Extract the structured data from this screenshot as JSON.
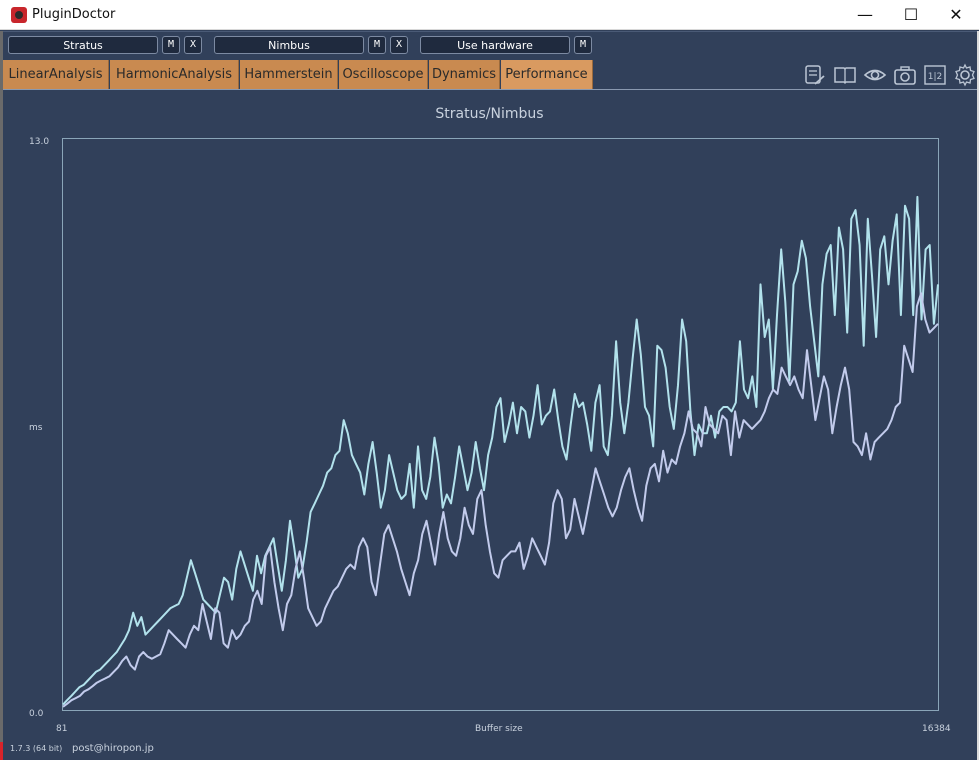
{
  "window": {
    "title": "PluginDoctor",
    "minimize": "—",
    "maximize": "☐",
    "close": "✕"
  },
  "toolbar": {
    "plugin_a": "Stratus",
    "plugin_b": "Nimbus",
    "hardware": "Use hardware",
    "m_label": "M",
    "x_label": "X"
  },
  "tabs": [
    "LinearAnalysis",
    "HarmonicAnalysis",
    "Hammerstein",
    "Oscilloscope",
    "Dynamics",
    "Performance"
  ],
  "active_tab": "Performance",
  "tools": [
    "notes-icon",
    "book-icon",
    "eye-icon",
    "camera-icon",
    "compare-icon",
    "settings-icon"
  ],
  "tool_compare_text": "1|2",
  "footer": {
    "version": "1.7.3 (64 bit)",
    "email": "post@hiropon.jp"
  },
  "chart_data": {
    "type": "line",
    "title": "Stratus/Nimbus",
    "xlabel": "Buffer size",
    "ylabel": "ms",
    "ylim": [
      0.0,
      13.0
    ],
    "y_tick_labels": [
      "13.0",
      "0.0"
    ],
    "x_tick_labels": [
      "81",
      "16384"
    ],
    "xlim": [
      81,
      16384
    ],
    "grid": false,
    "colors": {
      "background": "#31405a",
      "series_a": "#b2e2ec",
      "series_b": "#c2cbec",
      "frame": "#8aa5b8"
    },
    "series": [
      {
        "values": [
          0.1,
          0.2,
          0.3,
          0.4,
          0.5,
          0.55,
          0.65,
          0.75,
          0.85,
          0.9,
          1.0,
          1.1,
          1.2,
          1.3,
          1.45,
          1.6,
          1.8,
          2.2,
          1.9,
          2.1,
          1.7,
          1.8,
          1.9,
          2.0,
          2.1,
          2.2,
          2.3,
          2.35,
          2.4,
          2.6,
          3.0,
          3.4,
          3.1,
          2.8,
          2.5,
          2.4,
          2.3,
          2.2,
          2.6,
          3.0,
          2.9,
          2.5,
          3.2,
          3.6,
          3.3,
          3.0,
          2.7,
          3.5,
          3.1,
          3.5,
          3.7,
          3.9,
          3.3,
          2.7,
          3.4,
          4.3,
          3.7,
          3.0,
          3.2,
          3.8,
          4.5,
          4.7,
          4.9,
          5.1,
          5.4,
          5.5,
          5.8,
          5.9,
          6.6,
          6.3,
          5.8,
          5.6,
          5.4,
          4.9,
          5.6,
          6.1,
          5.4,
          4.6,
          5.0,
          5.8,
          5.4,
          5.0,
          4.8,
          4.9,
          5.6,
          4.6,
          6.0,
          5.0,
          4.8,
          5.3,
          6.2,
          5.6,
          4.6,
          4.9,
          4.7,
          5.3,
          6.0,
          5.5,
          5.0,
          5.4,
          6.1,
          5.5,
          5.0,
          5.8,
          6.2,
          6.9,
          7.1,
          6.1,
          6.5,
          7.0,
          6.3,
          6.9,
          6.8,
          6.2,
          6.7,
          7.4,
          6.5,
          6.7,
          6.8,
          7.3,
          6.6,
          6.0,
          5.7,
          6.5,
          7.2,
          6.9,
          7.0,
          6.5,
          5.9,
          7.0,
          7.4,
          6.0,
          5.8,
          6.7,
          8.4,
          7.0,
          6.3,
          7.0,
          8.0,
          8.9,
          8.1,
          6.9,
          6.7,
          6.0,
          8.3,
          8.2,
          7.8,
          6.9,
          6.4,
          7.4,
          8.9,
          8.4,
          6.8,
          5.8,
          6.5,
          6.3,
          6.3,
          6.7,
          6.2,
          6.8,
          6.9,
          6.9,
          6.8,
          7.0,
          8.4,
          7.3,
          7.1,
          7.6,
          6.9,
          9.7,
          8.5,
          8.9,
          7.3,
          9.0,
          10.5,
          9.3,
          7.5,
          9.7,
          10.0,
          10.7,
          10.3,
          9.2,
          8.4,
          7.6,
          9.7,
          10.4,
          10.6,
          9.0,
          11.0,
          10.5,
          8.6,
          11.2,
          11.4,
          10.6,
          8.3,
          11.2,
          9.9,
          8.5,
          10.5,
          10.8,
          9.7,
          10.7,
          11.3,
          9.0,
          11.5,
          11.2,
          9.0,
          11.7,
          8.9,
          10.5,
          10.6,
          8.8,
          9.7
        ],
        "name": ""
      },
      {
        "values": [
          0.05,
          0.12,
          0.2,
          0.25,
          0.3,
          0.4,
          0.45,
          0.52,
          0.6,
          0.65,
          0.7,
          0.75,
          0.85,
          0.95,
          1.1,
          1.2,
          1.0,
          0.9,
          1.2,
          1.3,
          1.2,
          1.15,
          1.2,
          1.25,
          1.5,
          1.8,
          1.7,
          1.6,
          1.5,
          1.4,
          1.7,
          1.9,
          1.8,
          2.4,
          2.0,
          1.6,
          2.3,
          2.2,
          1.5,
          1.4,
          1.8,
          1.6,
          1.7,
          1.9,
          2.0,
          2.5,
          2.7,
          2.4,
          3.5,
          3.7,
          2.9,
          2.3,
          1.8,
          2.4,
          2.6,
          3.2,
          3.6,
          3.0,
          2.3,
          2.1,
          1.9,
          2.0,
          2.3,
          2.5,
          2.7,
          2.8,
          3.0,
          3.2,
          3.3,
          3.2,
          3.7,
          3.9,
          3.7,
          2.9,
          2.6,
          3.3,
          4.0,
          4.2,
          3.9,
          3.6,
          3.2,
          2.9,
          2.6,
          3.1,
          3.4,
          4.0,
          4.3,
          3.8,
          3.3,
          4.0,
          4.5,
          3.9,
          3.6,
          3.5,
          3.9,
          4.6,
          4.2,
          4.0,
          4.8,
          5.0,
          4.2,
          3.6,
          3.1,
          3.0,
          3.4,
          3.5,
          3.6,
          3.6,
          3.8,
          3.2,
          3.5,
          3.9,
          3.7,
          3.5,
          3.3,
          3.8,
          4.7,
          5.0,
          4.8,
          3.9,
          4.1,
          4.8,
          4.4,
          4.0,
          4.5,
          5.0,
          5.5,
          5.2,
          4.9,
          4.6,
          4.4,
          4.6,
          5.0,
          5.3,
          5.5,
          5.0,
          4.6,
          4.3,
          5.1,
          5.5,
          5.6,
          5.2,
          5.9,
          5.4,
          5.7,
          5.6,
          6.0,
          6.3,
          6.8,
          6.4,
          6.3,
          6.0,
          6.9,
          6.5,
          6.4,
          6.3,
          6.7,
          6.6,
          5.8,
          6.8,
          6.2,
          6.6,
          6.5,
          6.4,
          6.5,
          6.6,
          6.8,
          7.1,
          7.3,
          7.2,
          7.8,
          7.6,
          7.4,
          7.6,
          7.3,
          7.1,
          8.2,
          7.4,
          6.6,
          7.1,
          7.6,
          7.3,
          6.3,
          6.9,
          7.4,
          7.8,
          7.3,
          6.1,
          6.0,
          5.8,
          6.3,
          5.7,
          6.1,
          6.2,
          6.3,
          6.4,
          6.6,
          6.9,
          7.0,
          8.3,
          8.0,
          7.7,
          9.2,
          9.5,
          8.9,
          8.6,
          8.7,
          8.8
        ],
        "name": ""
      }
    ]
  }
}
